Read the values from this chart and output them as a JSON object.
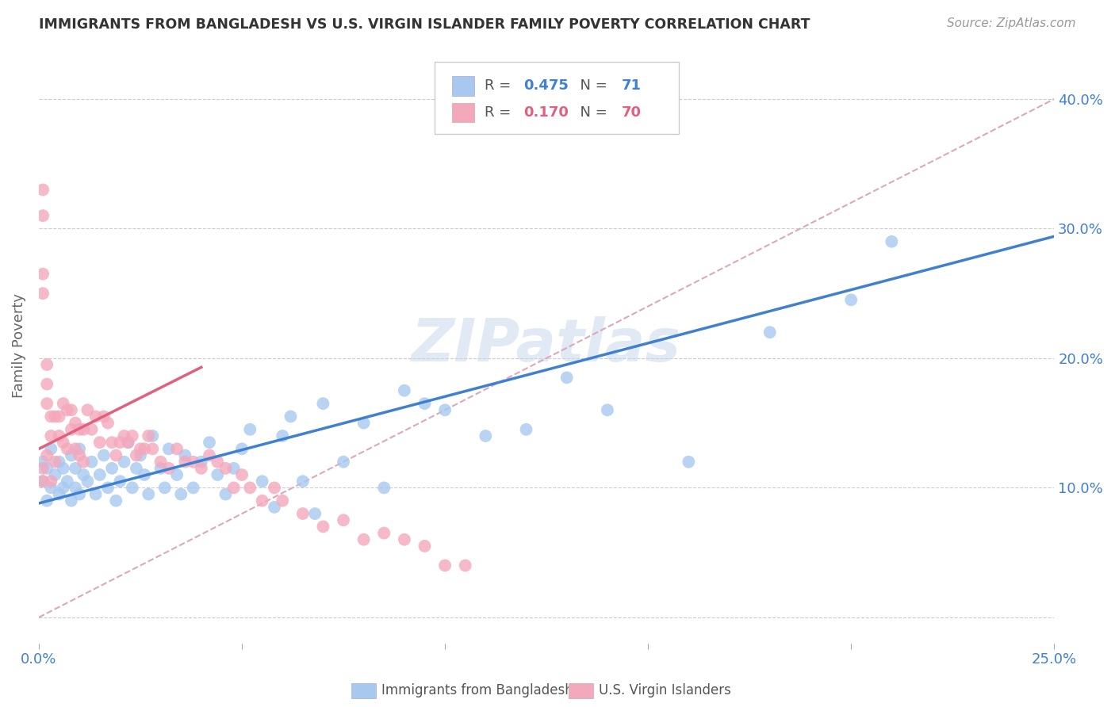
{
  "title": "IMMIGRANTS FROM BANGLADESH VS U.S. VIRGIN ISLANDER FAMILY POVERTY CORRELATION CHART",
  "source": "Source: ZipAtlas.com",
  "ylabel": "Family Poverty",
  "xlim": [
    0.0,
    0.25
  ],
  "ylim": [
    -0.02,
    0.44
  ],
  "xtick_positions": [
    0.0,
    0.05,
    0.1,
    0.15,
    0.2,
    0.25
  ],
  "xtick_labels": [
    "0.0%",
    "",
    "",
    "",
    "",
    "25.0%"
  ],
  "ytick_positions": [
    0.0,
    0.1,
    0.2,
    0.3,
    0.4
  ],
  "ytick_labels_right": [
    "",
    "10.0%",
    "20.0%",
    "30.0%",
    "40.0%"
  ],
  "blue_R": 0.475,
  "blue_N": 71,
  "pink_R": 0.17,
  "pink_N": 70,
  "blue_color": "#A8C8F0",
  "pink_color": "#F4A8BC",
  "blue_line_color": "#4080D0",
  "pink_line_color": "#E06080",
  "diagonal_color": "#DDA8B8",
  "watermark": "ZIPatlas",
  "legend_label_blue": "Immigrants from Bangladesh",
  "legend_label_pink": "U.S. Virgin Islanders",
  "blue_scatter_x": [
    0.001,
    0.001,
    0.002,
    0.002,
    0.003,
    0.003,
    0.004,
    0.005,
    0.005,
    0.006,
    0.006,
    0.007,
    0.008,
    0.008,
    0.009,
    0.009,
    0.01,
    0.01,
    0.011,
    0.012,
    0.013,
    0.014,
    0.015,
    0.016,
    0.017,
    0.018,
    0.019,
    0.02,
    0.021,
    0.022,
    0.023,
    0.024,
    0.025,
    0.026,
    0.027,
    0.028,
    0.03,
    0.031,
    0.032,
    0.034,
    0.035,
    0.036,
    0.038,
    0.04,
    0.042,
    0.044,
    0.046,
    0.048,
    0.05,
    0.052,
    0.055,
    0.058,
    0.06,
    0.062,
    0.065,
    0.068,
    0.07,
    0.075,
    0.08,
    0.085,
    0.09,
    0.095,
    0.1,
    0.11,
    0.12,
    0.13,
    0.14,
    0.16,
    0.18,
    0.2,
    0.21
  ],
  "blue_scatter_y": [
    0.105,
    0.12,
    0.09,
    0.115,
    0.1,
    0.13,
    0.11,
    0.095,
    0.12,
    0.1,
    0.115,
    0.105,
    0.09,
    0.125,
    0.1,
    0.115,
    0.095,
    0.13,
    0.11,
    0.105,
    0.12,
    0.095,
    0.11,
    0.125,
    0.1,
    0.115,
    0.09,
    0.105,
    0.12,
    0.135,
    0.1,
    0.115,
    0.125,
    0.11,
    0.095,
    0.14,
    0.115,
    0.1,
    0.13,
    0.11,
    0.095,
    0.125,
    0.1,
    0.12,
    0.135,
    0.11,
    0.095,
    0.115,
    0.13,
    0.145,
    0.105,
    0.085,
    0.14,
    0.155,
    0.105,
    0.08,
    0.165,
    0.12,
    0.15,
    0.1,
    0.175,
    0.165,
    0.16,
    0.14,
    0.145,
    0.185,
    0.16,
    0.12,
    0.22,
    0.245,
    0.29
  ],
  "pink_scatter_x": [
    0.001,
    0.001,
    0.001,
    0.001,
    0.001,
    0.001,
    0.002,
    0.002,
    0.002,
    0.002,
    0.003,
    0.003,
    0.003,
    0.004,
    0.004,
    0.005,
    0.005,
    0.006,
    0.006,
    0.007,
    0.007,
    0.008,
    0.008,
    0.009,
    0.009,
    0.01,
    0.01,
    0.011,
    0.011,
    0.012,
    0.013,
    0.014,
    0.015,
    0.016,
    0.017,
    0.018,
    0.019,
    0.02,
    0.021,
    0.022,
    0.023,
    0.024,
    0.025,
    0.026,
    0.027,
    0.028,
    0.03,
    0.032,
    0.034,
    0.036,
    0.038,
    0.04,
    0.042,
    0.044,
    0.046,
    0.048,
    0.05,
    0.052,
    0.055,
    0.058,
    0.06,
    0.065,
    0.07,
    0.075,
    0.08,
    0.085,
    0.09,
    0.095,
    0.1,
    0.105
  ],
  "pink_scatter_y": [
    0.33,
    0.31,
    0.265,
    0.25,
    0.115,
    0.105,
    0.195,
    0.18,
    0.165,
    0.125,
    0.155,
    0.14,
    0.105,
    0.155,
    0.12,
    0.155,
    0.14,
    0.165,
    0.135,
    0.16,
    0.13,
    0.16,
    0.145,
    0.15,
    0.13,
    0.145,
    0.125,
    0.145,
    0.12,
    0.16,
    0.145,
    0.155,
    0.135,
    0.155,
    0.15,
    0.135,
    0.125,
    0.135,
    0.14,
    0.135,
    0.14,
    0.125,
    0.13,
    0.13,
    0.14,
    0.13,
    0.12,
    0.115,
    0.13,
    0.12,
    0.12,
    0.115,
    0.125,
    0.12,
    0.115,
    0.1,
    0.11,
    0.1,
    0.09,
    0.1,
    0.09,
    0.08,
    0.07,
    0.075,
    0.06,
    0.065,
    0.06,
    0.055,
    0.04,
    0.04
  ],
  "blue_line_x": [
    0.0,
    0.25
  ],
  "blue_line_y": [
    0.088,
    0.294
  ],
  "pink_line_x": [
    0.0,
    0.04
  ],
  "pink_line_y": [
    0.13,
    0.193
  ]
}
